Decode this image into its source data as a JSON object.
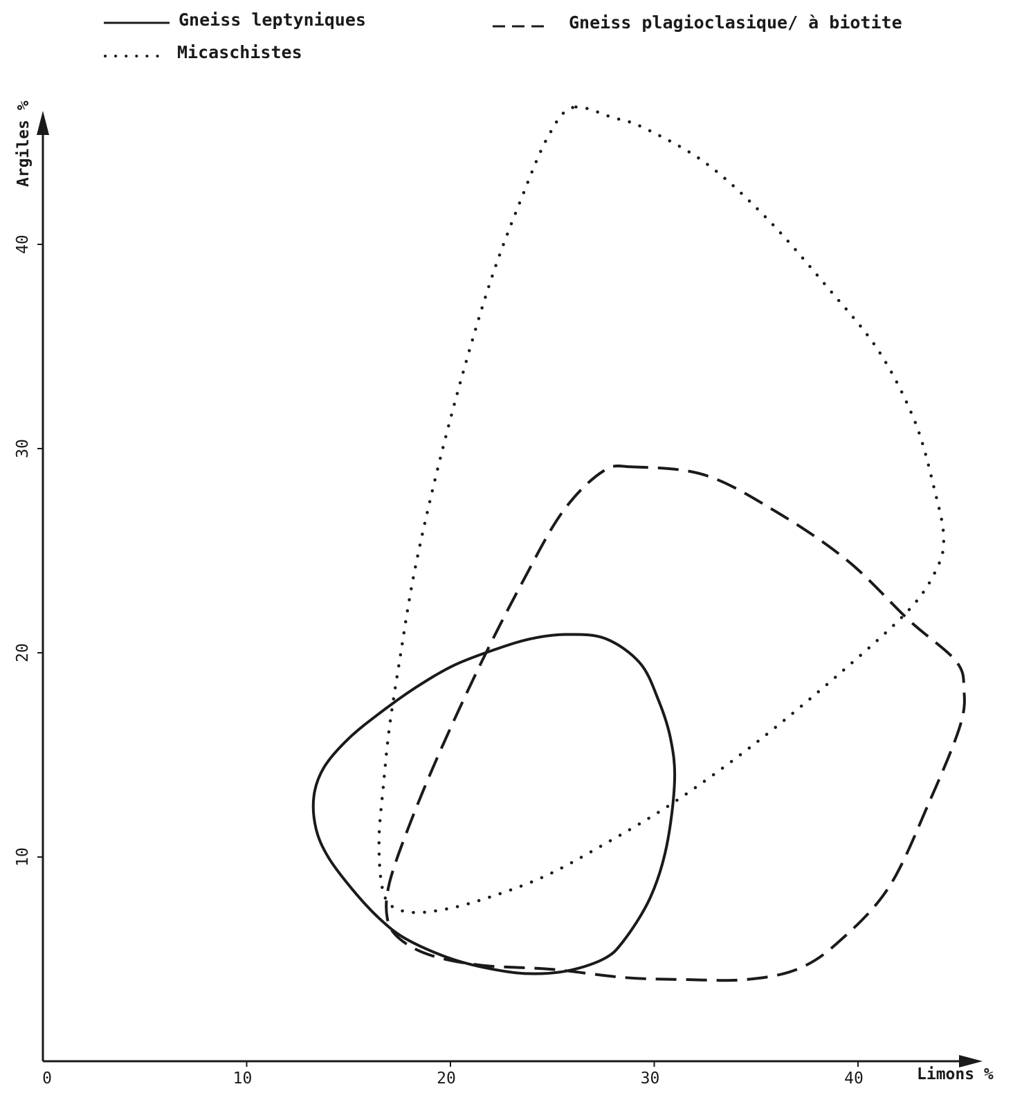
{
  "chart_data": {
    "type": "area",
    "xlabel": "Limons %",
    "ylabel": "Argiles %",
    "xlim": [
      0,
      45
    ],
    "ylim": [
      0,
      47
    ],
    "x_ticks": [
      {
        "value": 0,
        "label": "0"
      },
      {
        "value": 10,
        "label": "10"
      },
      {
        "value": 20,
        "label": "20"
      },
      {
        "value": 30,
        "label": "30"
      },
      {
        "value": 40,
        "label": "40"
      }
    ],
    "y_ticks": [
      {
        "value": 10,
        "label": "10"
      },
      {
        "value": 20,
        "label": "20"
      },
      {
        "value": 30,
        "label": "30"
      },
      {
        "value": 40,
        "label": "40"
      }
    ],
    "legend": [
      {
        "label": "Gneiss leptyniques",
        "style": "solid"
      },
      {
        "label": "Micaschistes",
        "style": "dotted"
      },
      {
        "label": "Gneiss plagioclasique/ à biotite",
        "style": "dashed"
      }
    ],
    "series": [
      {
        "name": "Gneiss leptyniques",
        "style": "solid",
        "color": "#1a1a1a",
        "x": [
          25.7,
          27.6,
          29.3,
          30.2,
          30.8,
          31.0,
          30.6,
          29.8,
          28.5,
          27.5,
          25.6,
          23.6,
          21.6,
          19.8,
          17.8,
          16.5,
          15.2,
          14.0,
          13.4,
          13.3,
          13.8,
          15.0,
          16.6,
          18.3,
          20.2,
          22.3,
          24.0,
          25.7
        ],
        "y": [
          20.9,
          20.7,
          19.5,
          17.7,
          15.8,
          13.7,
          10.5,
          8.0,
          5.9,
          5.0,
          4.4,
          4.3,
          4.6,
          5.1,
          6.0,
          7.0,
          8.4,
          10.0,
          11.4,
          13.0,
          14.4,
          15.8,
          17.1,
          18.3,
          19.4,
          20.2,
          20.7,
          20.9
        ]
      },
      {
        "name": "Micaschistes",
        "style": "dotted",
        "color": "#1a1a1a",
        "x": [
          26.0,
          24.8,
          23.5,
          22.0,
          20.5,
          19.2,
          18.2,
          17.5,
          17.0,
          16.7,
          16.5,
          16.6,
          17.0,
          18.0,
          19.5,
          21.5,
          24.5,
          27.5,
          31.0,
          35.0,
          39.0,
          42.5,
          43.9,
          44.2,
          43.8,
          42.8,
          41.0,
          38.5,
          35.5,
          32.5,
          29.5,
          28.0,
          26.0
        ],
        "y": [
          46.7,
          45.3,
          42.3,
          38.3,
          33.3,
          28.3,
          23.8,
          19.6,
          16.3,
          13.4,
          11.0,
          8.8,
          7.7,
          7.3,
          7.4,
          7.9,
          9.0,
          10.6,
          12.7,
          15.6,
          18.9,
          22.1,
          24.2,
          25.7,
          27.8,
          31.3,
          34.8,
          37.9,
          41.3,
          44.0,
          45.7,
          46.2,
          46.7
        ]
      },
      {
        "name": "Gneiss plagioclasique/ à biotite",
        "style": "dashed",
        "color": "#1a1a1a",
        "x": [
          29.0,
          27.5,
          25.5,
          23.5,
          21.5,
          19.5,
          18.0,
          17.0,
          16.9,
          17.5,
          19.0,
          21.5,
          25.0,
          28.5,
          31.5,
          34.5,
          37.0,
          39.0,
          41.5,
          43.5,
          45.0,
          45.2,
          44.8,
          42.5,
          39.5,
          36.0,
          32.5,
          29.0
        ],
        "y": [
          29.1,
          28.9,
          26.9,
          23.4,
          19.5,
          15.2,
          11.6,
          8.7,
          7.0,
          6.0,
          5.2,
          4.7,
          4.5,
          4.1,
          4.0,
          4.0,
          4.5,
          5.8,
          8.5,
          12.7,
          16.4,
          18.2,
          19.6,
          21.6,
          24.5,
          26.9,
          28.7,
          29.1
        ]
      }
    ]
  }
}
